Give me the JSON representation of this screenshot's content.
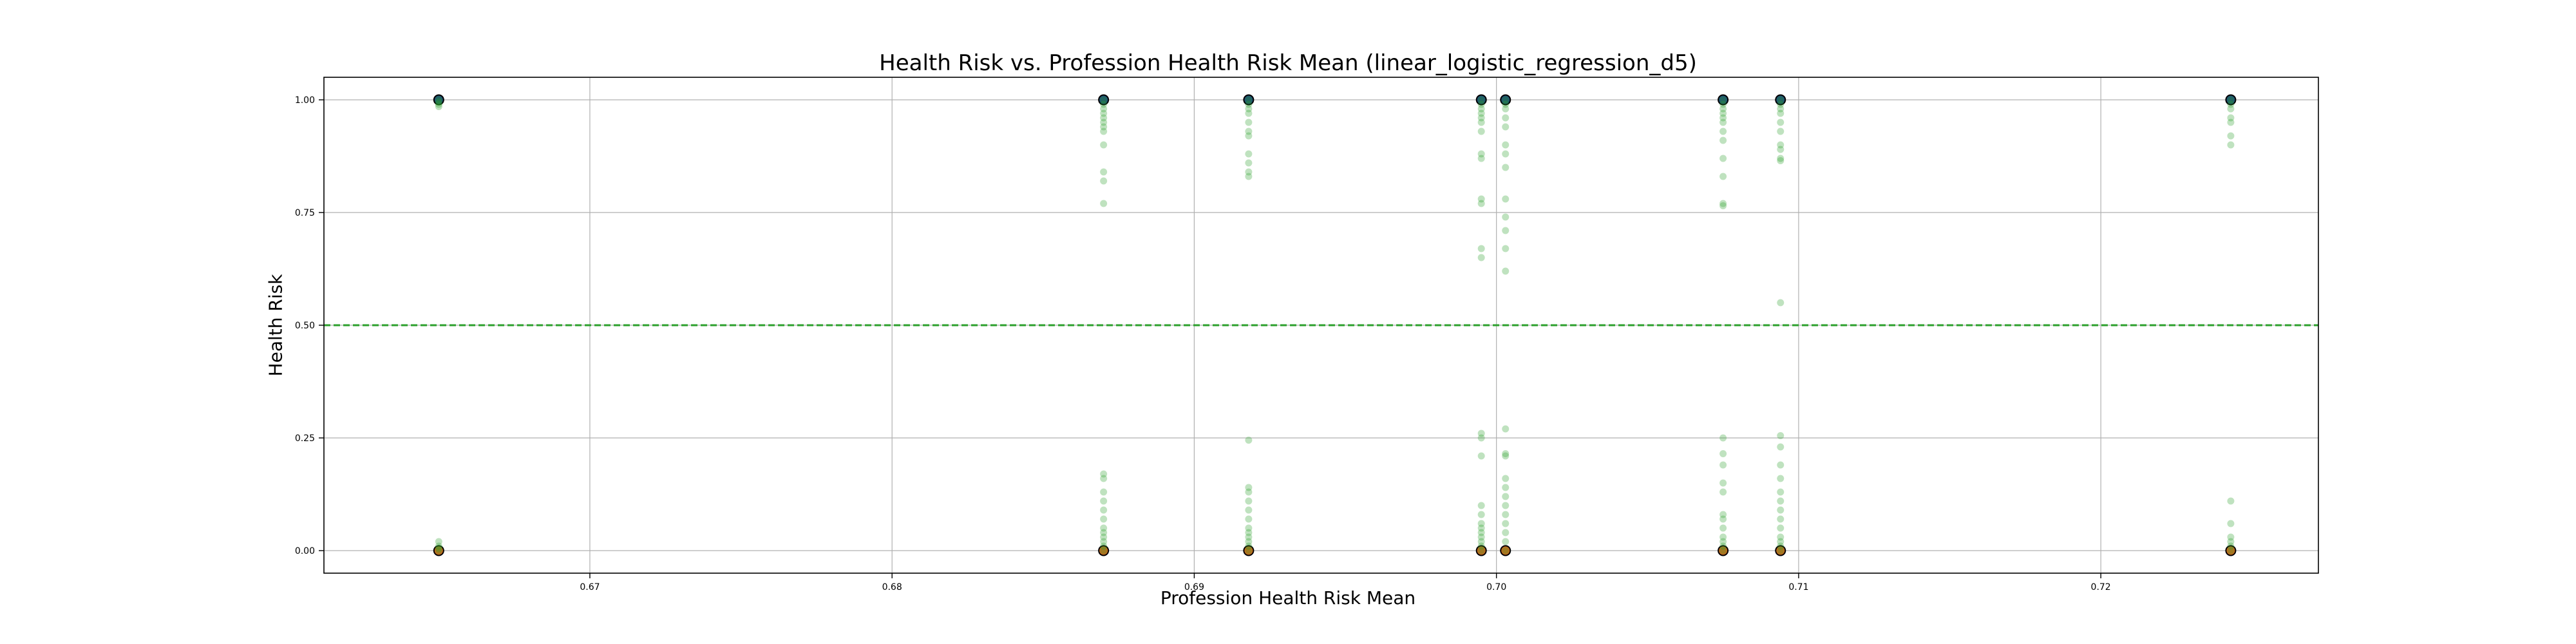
{
  "chart_data": {
    "type": "scatter",
    "title": "Health Risk vs. Profession Health Risk Mean (linear_logistic_regression_d5)",
    "xlabel": "Profession Health Risk Mean",
    "ylabel": "Health Risk",
    "xlim": [
      0.6612,
      0.7272
    ],
    "ylim": [
      -0.05,
      1.05
    ],
    "xticks": [
      0.67,
      0.68,
      0.69,
      0.7,
      0.71,
      0.72
    ],
    "xtick_labels": [
      "0.67",
      "0.68",
      "0.69",
      "0.70",
      "0.71",
      "0.72"
    ],
    "yticks": [
      0.0,
      0.25,
      0.5,
      0.75,
      1.0
    ],
    "ytick_labels": [
      "0.00",
      "0.25",
      "0.50",
      "0.75",
      "1.00"
    ],
    "grid": true,
    "threshold_line": {
      "y": 0.5,
      "style": "dashed",
      "color": "#2ca02c"
    },
    "colors": {
      "actual_high": "#1f4e79",
      "actual_low": "#d2691e",
      "predicted": "#2ca02c"
    },
    "series": [
      {
        "role": "predicted_probability",
        "points": [
          [
            0.665,
            1.0
          ],
          [
            0.665,
            0.995
          ],
          [
            0.665,
            0.99
          ],
          [
            0.665,
            0.985
          ],
          [
            0.665,
            0.02
          ],
          [
            0.665,
            0.01
          ],
          [
            0.665,
            0.005
          ],
          [
            0.665,
            0.0
          ],
          [
            0.687,
            1.0
          ],
          [
            0.687,
            0.99
          ],
          [
            0.687,
            0.98
          ],
          [
            0.687,
            0.97
          ],
          [
            0.687,
            0.96
          ],
          [
            0.687,
            0.95
          ],
          [
            0.687,
            0.94
          ],
          [
            0.687,
            0.93
          ],
          [
            0.687,
            0.9
          ],
          [
            0.687,
            0.84
          ],
          [
            0.687,
            0.82
          ],
          [
            0.687,
            0.77
          ],
          [
            0.687,
            0.17
          ],
          [
            0.687,
            0.16
          ],
          [
            0.687,
            0.13
          ],
          [
            0.687,
            0.11
          ],
          [
            0.687,
            0.09
          ],
          [
            0.687,
            0.07
          ],
          [
            0.687,
            0.05
          ],
          [
            0.687,
            0.04
          ],
          [
            0.687,
            0.03
          ],
          [
            0.687,
            0.02
          ],
          [
            0.687,
            0.01
          ],
          [
            0.687,
            0.0
          ],
          [
            0.6918,
            1.0
          ],
          [
            0.6918,
            0.99
          ],
          [
            0.6918,
            0.98
          ],
          [
            0.6918,
            0.97
          ],
          [
            0.6918,
            0.95
          ],
          [
            0.6918,
            0.93
          ],
          [
            0.6918,
            0.92
          ],
          [
            0.6918,
            0.88
          ],
          [
            0.6918,
            0.86
          ],
          [
            0.6918,
            0.84
          ],
          [
            0.6918,
            0.83
          ],
          [
            0.6918,
            0.245
          ],
          [
            0.6918,
            0.14
          ],
          [
            0.6918,
            0.13
          ],
          [
            0.6918,
            0.11
          ],
          [
            0.6918,
            0.09
          ],
          [
            0.6918,
            0.07
          ],
          [
            0.6918,
            0.05
          ],
          [
            0.6918,
            0.04
          ],
          [
            0.6918,
            0.03
          ],
          [
            0.6918,
            0.02
          ],
          [
            0.6918,
            0.01
          ],
          [
            0.6918,
            0.0
          ],
          [
            0.6995,
            1.0
          ],
          [
            0.6995,
            0.99
          ],
          [
            0.6995,
            0.98
          ],
          [
            0.6995,
            0.97
          ],
          [
            0.6995,
            0.96
          ],
          [
            0.6995,
            0.95
          ],
          [
            0.6995,
            0.93
          ],
          [
            0.6995,
            0.88
          ],
          [
            0.6995,
            0.87
          ],
          [
            0.6995,
            0.78
          ],
          [
            0.6995,
            0.77
          ],
          [
            0.6995,
            0.67
          ],
          [
            0.6995,
            0.65
          ],
          [
            0.6995,
            0.26
          ],
          [
            0.6995,
            0.25
          ],
          [
            0.6995,
            0.21
          ],
          [
            0.6995,
            0.1
          ],
          [
            0.6995,
            0.08
          ],
          [
            0.6995,
            0.06
          ],
          [
            0.6995,
            0.05
          ],
          [
            0.6995,
            0.04
          ],
          [
            0.6995,
            0.03
          ],
          [
            0.6995,
            0.02
          ],
          [
            0.6995,
            0.01
          ],
          [
            0.6995,
            0.0
          ],
          [
            0.7003,
            1.0
          ],
          [
            0.7003,
            0.99
          ],
          [
            0.7003,
            0.98
          ],
          [
            0.7003,
            0.96
          ],
          [
            0.7003,
            0.94
          ],
          [
            0.7003,
            0.9
          ],
          [
            0.7003,
            0.88
          ],
          [
            0.7003,
            0.85
          ],
          [
            0.7003,
            0.78
          ],
          [
            0.7003,
            0.74
          ],
          [
            0.7003,
            0.71
          ],
          [
            0.7003,
            0.67
          ],
          [
            0.7003,
            0.62
          ],
          [
            0.7003,
            0.27
          ],
          [
            0.7003,
            0.215
          ],
          [
            0.7003,
            0.21
          ],
          [
            0.7003,
            0.16
          ],
          [
            0.7003,
            0.14
          ],
          [
            0.7003,
            0.12
          ],
          [
            0.7003,
            0.1
          ],
          [
            0.7003,
            0.08
          ],
          [
            0.7003,
            0.06
          ],
          [
            0.7003,
            0.04
          ],
          [
            0.7003,
            0.02
          ],
          [
            0.7003,
            0.0
          ],
          [
            0.7075,
            1.0
          ],
          [
            0.7075,
            0.99
          ],
          [
            0.7075,
            0.98
          ],
          [
            0.7075,
            0.97
          ],
          [
            0.7075,
            0.96
          ],
          [
            0.7075,
            0.95
          ],
          [
            0.7075,
            0.93
          ],
          [
            0.7075,
            0.91
          ],
          [
            0.7075,
            0.87
          ],
          [
            0.7075,
            0.83
          ],
          [
            0.7075,
            0.77
          ],
          [
            0.7075,
            0.765
          ],
          [
            0.7075,
            0.25
          ],
          [
            0.7075,
            0.215
          ],
          [
            0.7075,
            0.19
          ],
          [
            0.7075,
            0.15
          ],
          [
            0.7075,
            0.13
          ],
          [
            0.7075,
            0.08
          ],
          [
            0.7075,
            0.07
          ],
          [
            0.7075,
            0.05
          ],
          [
            0.7075,
            0.03
          ],
          [
            0.7075,
            0.02
          ],
          [
            0.7075,
            0.01
          ],
          [
            0.7075,
            0.0
          ],
          [
            0.7094,
            1.0
          ],
          [
            0.7094,
            0.99
          ],
          [
            0.7094,
            0.98
          ],
          [
            0.7094,
            0.97
          ],
          [
            0.7094,
            0.95
          ],
          [
            0.7094,
            0.93
          ],
          [
            0.7094,
            0.9
          ],
          [
            0.7094,
            0.89
          ],
          [
            0.7094,
            0.87
          ],
          [
            0.7094,
            0.865
          ],
          [
            0.7094,
            0.55
          ],
          [
            0.7094,
            0.255
          ],
          [
            0.7094,
            0.23
          ],
          [
            0.7094,
            0.19
          ],
          [
            0.7094,
            0.16
          ],
          [
            0.7094,
            0.13
          ],
          [
            0.7094,
            0.11
          ],
          [
            0.7094,
            0.09
          ],
          [
            0.7094,
            0.07
          ],
          [
            0.7094,
            0.05
          ],
          [
            0.7094,
            0.03
          ],
          [
            0.7094,
            0.02
          ],
          [
            0.7094,
            0.01
          ],
          [
            0.7094,
            0.0
          ],
          [
            0.7243,
            1.0
          ],
          [
            0.7243,
            0.99
          ],
          [
            0.7243,
            0.98
          ],
          [
            0.7243,
            0.96
          ],
          [
            0.7243,
            0.95
          ],
          [
            0.7243,
            0.92
          ],
          [
            0.7243,
            0.9
          ],
          [
            0.7243,
            0.11
          ],
          [
            0.7243,
            0.06
          ],
          [
            0.7243,
            0.03
          ],
          [
            0.7243,
            0.02
          ],
          [
            0.7243,
            0.01
          ],
          [
            0.7243,
            0.0
          ]
        ]
      },
      {
        "role": "actual_high",
        "points": [
          [
            0.665,
            1.0
          ],
          [
            0.687,
            1.0
          ],
          [
            0.6918,
            1.0
          ],
          [
            0.6995,
            1.0
          ],
          [
            0.7003,
            1.0
          ],
          [
            0.7075,
            1.0
          ],
          [
            0.7094,
            1.0
          ],
          [
            0.7243,
            1.0
          ]
        ]
      },
      {
        "role": "actual_low",
        "points": [
          [
            0.665,
            0.0
          ],
          [
            0.687,
            0.0
          ],
          [
            0.6918,
            0.0
          ],
          [
            0.6995,
            0.0
          ],
          [
            0.7003,
            0.0
          ],
          [
            0.7075,
            0.0
          ],
          [
            0.7094,
            0.0
          ],
          [
            0.7243,
            0.0
          ]
        ]
      }
    ]
  }
}
